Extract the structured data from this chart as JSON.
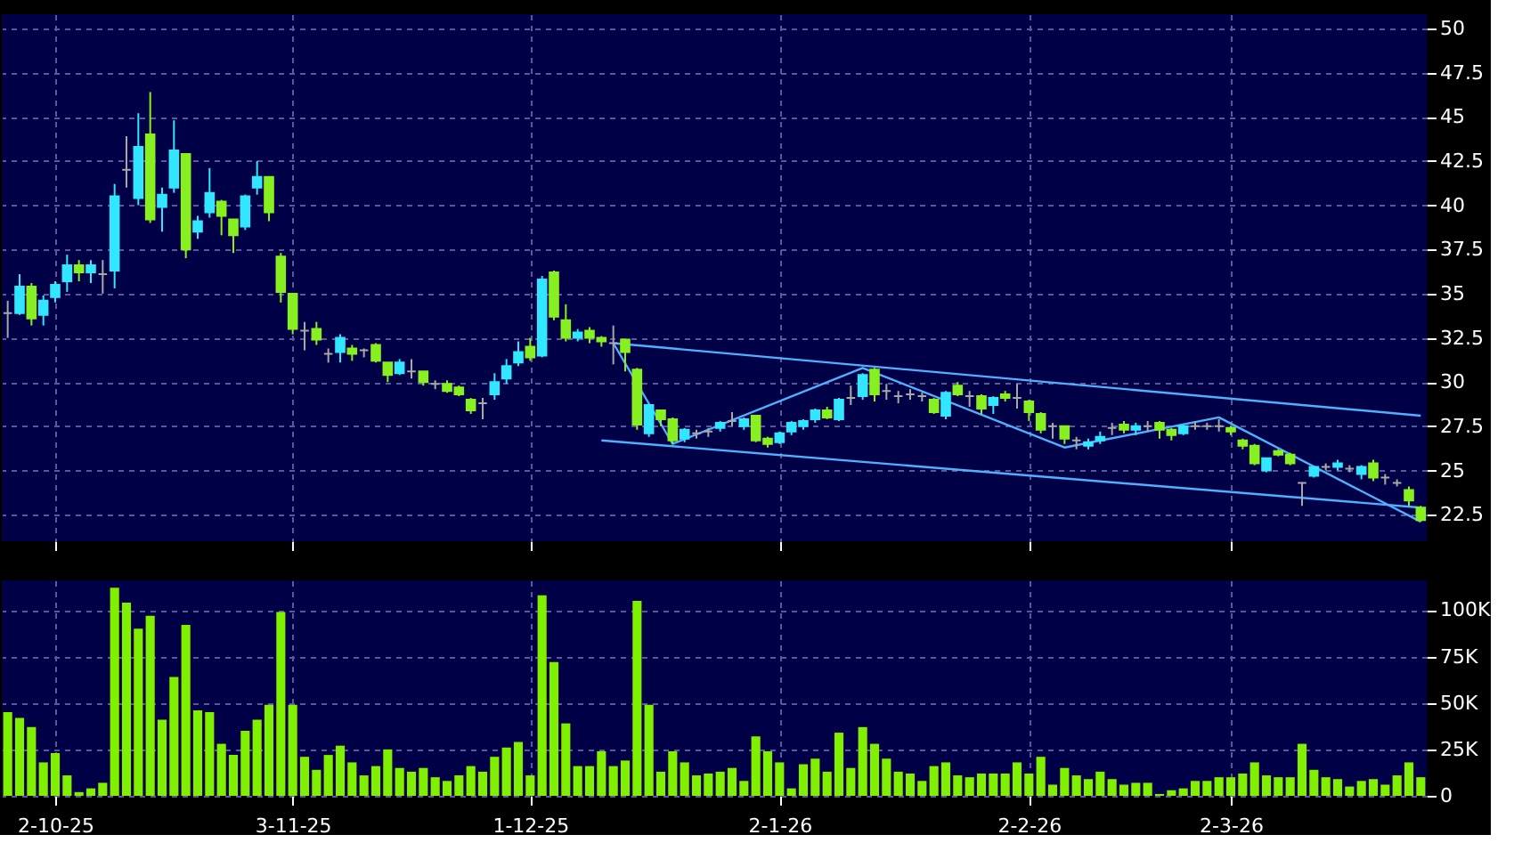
{
  "chart_data": [
    {
      "type": "candlestick",
      "categories": [
        null,
        null,
        null,
        null,
        null,
        null,
        null,
        null,
        null,
        null,
        null,
        null,
        null,
        null,
        null,
        null,
        null,
        null,
        null,
        null,
        null,
        null,
        null,
        null,
        null,
        null,
        null,
        null,
        null,
        null,
        null,
        null,
        null,
        null,
        null,
        null,
        null,
        null,
        null,
        null,
        null,
        null,
        null,
        null,
        null,
        null,
        null,
        null,
        null,
        null,
        null,
        null,
        null,
        null,
        null,
        null,
        null,
        null,
        null,
        null,
        null,
        null,
        null,
        null,
        null,
        null,
        null,
        null,
        null,
        null,
        null,
        null,
        null,
        null,
        null,
        null,
        null,
        null,
        null,
        null,
        null,
        null,
        null,
        null,
        null,
        null,
        null,
        null,
        null,
        null,
        null,
        null,
        null,
        null,
        null,
        null,
        null,
        null,
        null,
        null,
        null,
        null,
        null,
        null,
        null,
        null,
        null,
        null,
        null,
        null,
        null,
        null,
        null,
        null,
        null,
        null,
        null,
        null,
        null,
        null
      ],
      "ohlc": [
        [
          33.9,
          34.6,
          32.5,
          33.9
        ],
        [
          33.9,
          36.1,
          33.8,
          35.4
        ],
        [
          35.4,
          35.6,
          33.2,
          33.6
        ],
        [
          33.8,
          34.9,
          33.2,
          34.6
        ],
        [
          34.8,
          35.7,
          34.5,
          35.5
        ],
        [
          35.7,
          37.2,
          35.1,
          36.6
        ],
        [
          36.6,
          36.9,
          35.7,
          36.2
        ],
        [
          36.2,
          36.9,
          35.6,
          36.6
        ],
        [
          36.1,
          36.9,
          35.0,
          36.1
        ],
        [
          36.3,
          41.2,
          35.3,
          40.5
        ],
        [
          42.0,
          43.9,
          41.0,
          42.0
        ],
        [
          40.4,
          45.2,
          40.0,
          43.3
        ],
        [
          44.0,
          46.4,
          39.0,
          39.2
        ],
        [
          39.9,
          41.0,
          38.5,
          40.6
        ],
        [
          41.0,
          44.8,
          40.7,
          43.1
        ],
        [
          42.9,
          42.9,
          37.0,
          37.5
        ],
        [
          38.5,
          39.4,
          38.1,
          39.1
        ],
        [
          39.6,
          42.1,
          39.3,
          40.7
        ],
        [
          40.2,
          40.3,
          38.3,
          39.4
        ],
        [
          39.2,
          39.2,
          37.3,
          38.3
        ],
        [
          38.8,
          40.6,
          38.6,
          40.5
        ],
        [
          41.0,
          42.5,
          40.6,
          41.6
        ],
        [
          41.6,
          41.6,
          39.1,
          39.6
        ],
        [
          37.1,
          37.3,
          34.5,
          35.1
        ],
        [
          35.0,
          35.0,
          32.7,
          33.0
        ],
        [
          32.9,
          33.4,
          31.8,
          32.9
        ],
        [
          33.0,
          33.4,
          32.1,
          32.4
        ],
        [
          31.6,
          31.9,
          31.1,
          31.6
        ],
        [
          31.7,
          32.7,
          31.1,
          32.5
        ],
        [
          31.9,
          32.1,
          31.2,
          31.6
        ],
        [
          31.8,
          31.9,
          31.4,
          31.8
        ],
        [
          32.1,
          32.2,
          31.1,
          31.2
        ],
        [
          31.1,
          31.1,
          30.0,
          30.4
        ],
        [
          30.5,
          31.3,
          30.4,
          31.1
        ],
        [
          30.6,
          31.3,
          30.2,
          30.6
        ],
        [
          30.6,
          30.6,
          29.8,
          30.0
        ],
        [
          29.9,
          30.1,
          29.6,
          29.9
        ],
        [
          29.9,
          30.1,
          29.4,
          29.5
        ],
        [
          29.7,
          29.8,
          29.2,
          29.3
        ],
        [
          29.0,
          29.1,
          28.2,
          28.4
        ],
        [
          28.8,
          29.1,
          27.9,
          28.8
        ],
        [
          29.3,
          30.5,
          29.0,
          30.0
        ],
        [
          30.2,
          31.3,
          29.9,
          30.9
        ],
        [
          31.1,
          32.3,
          30.9,
          31.7
        ],
        [
          32.0,
          32.5,
          31.2,
          31.4
        ],
        [
          31.5,
          36.0,
          31.4,
          35.8
        ],
        [
          36.2,
          36.3,
          33.5,
          33.7
        ],
        [
          33.5,
          34.4,
          32.3,
          32.5
        ],
        [
          32.5,
          33.0,
          32.3,
          32.8
        ],
        [
          32.9,
          33.1,
          32.2,
          32.5
        ],
        [
          32.5,
          32.6,
          32.0,
          32.3
        ],
        [
          32.2,
          33.2,
          31.0,
          32.2
        ],
        [
          32.4,
          32.4,
          30.6,
          31.7
        ],
        [
          30.7,
          30.8,
          27.3,
          27.6
        ],
        [
          27.1,
          28.7,
          26.9,
          28.7
        ],
        [
          28.4,
          28.4,
          27.5,
          27.9
        ],
        [
          27.9,
          28.0,
          26.5,
          26.7
        ],
        [
          26.8,
          27.4,
          26.6,
          27.3
        ],
        [
          27.1,
          27.3,
          26.8,
          27.1
        ],
        [
          27.2,
          27.4,
          26.9,
          27.2
        ],
        [
          27.4,
          27.8,
          27.2,
          27.7
        ],
        [
          27.8,
          28.3,
          27.5,
          27.8
        ],
        [
          27.5,
          28.0,
          27.3,
          27.9
        ],
        [
          28.1,
          28.1,
          26.6,
          26.7
        ],
        [
          26.8,
          26.9,
          26.3,
          26.5
        ],
        [
          26.6,
          27.2,
          26.5,
          27.1
        ],
        [
          27.2,
          27.8,
          27.0,
          27.7
        ],
        [
          27.5,
          27.9,
          27.3,
          27.8
        ],
        [
          27.9,
          28.5,
          27.7,
          28.4
        ],
        [
          28.4,
          28.6,
          27.9,
          28.0
        ],
        [
          27.9,
          29.1,
          27.8,
          29.0
        ],
        [
          29.1,
          29.8,
          28.7,
          29.1
        ],
        [
          29.2,
          30.5,
          29.0,
          30.4
        ],
        [
          30.7,
          30.8,
          28.9,
          29.3
        ],
        [
          29.5,
          29.9,
          29.0,
          29.5
        ],
        [
          29.2,
          29.5,
          28.8,
          29.2
        ],
        [
          29.3,
          29.6,
          29.0,
          29.3
        ],
        [
          29.2,
          29.4,
          28.9,
          29.2
        ],
        [
          29.0,
          29.1,
          28.2,
          28.3
        ],
        [
          28.1,
          29.5,
          27.9,
          29.4
        ],
        [
          29.8,
          30.0,
          29.2,
          29.3
        ],
        [
          29.2,
          29.5,
          28.6,
          29.2
        ],
        [
          29.2,
          29.3,
          28.2,
          28.5
        ],
        [
          28.7,
          29.2,
          28.2,
          29.1
        ],
        [
          29.3,
          29.5,
          28.9,
          29.1
        ],
        [
          29.1,
          29.9,
          28.5,
          29.1
        ],
        [
          28.9,
          29.0,
          27.8,
          28.3
        ],
        [
          28.2,
          28.3,
          27.1,
          27.3
        ],
        [
          27.5,
          27.7,
          26.8,
          27.5
        ],
        [
          27.5,
          27.5,
          26.5,
          26.8
        ],
        [
          26.7,
          26.9,
          26.2,
          26.7
        ],
        [
          26.4,
          26.8,
          26.2,
          26.6
        ],
        [
          26.7,
          27.2,
          26.5,
          26.9
        ],
        [
          27.4,
          27.7,
          27.0,
          27.4
        ],
        [
          27.6,
          27.8,
          27.1,
          27.3
        ],
        [
          27.3,
          27.7,
          27.0,
          27.5
        ],
        [
          27.5,
          27.8,
          27.2,
          27.5
        ],
        [
          27.7,
          27.8,
          26.8,
          27.3
        ],
        [
          27.3,
          27.4,
          26.7,
          27.0
        ],
        [
          27.1,
          27.6,
          27.0,
          27.5
        ],
        [
          27.5,
          27.8,
          27.3,
          27.5
        ],
        [
          27.5,
          27.7,
          27.3,
          27.5
        ],
        [
          27.5,
          27.9,
          27.2,
          27.5
        ],
        [
          27.4,
          27.5,
          27.0,
          27.2
        ],
        [
          26.7,
          26.8,
          26.2,
          26.4
        ],
        [
          26.4,
          26.5,
          25.3,
          25.4
        ],
        [
          25.0,
          25.7,
          24.9,
          25.7
        ],
        [
          26.1,
          26.2,
          25.8,
          25.9
        ],
        [
          25.9,
          26.0,
          25.3,
          25.4
        ],
        [
          24.3,
          24.3,
          23.0,
          24.3
        ],
        [
          24.7,
          25.2,
          24.6,
          25.2
        ],
        [
          25.2,
          25.4,
          25.0,
          25.2
        ],
        [
          25.2,
          25.6,
          25.0,
          25.4
        ],
        [
          25.1,
          25.3,
          24.9,
          25.1
        ],
        [
          24.8,
          25.3,
          24.5,
          25.2
        ],
        [
          25.4,
          25.6,
          24.4,
          24.6
        ],
        [
          24.6,
          24.8,
          24.2,
          24.6
        ],
        [
          24.3,
          24.5,
          24.1,
          24.3
        ],
        [
          23.9,
          24.1,
          23.0,
          23.3
        ],
        [
          22.9,
          23.0,
          22.1,
          22.2
        ]
      ],
      "colors": [
        "#a8a8a8",
        "#33e6ff",
        "#88f020",
        "#33e6ff",
        "#33e6ff",
        "#33e6ff",
        "#88f020",
        "#33e6ff",
        "#a8a8a8",
        "#33e6ff",
        "#a8a8a8",
        "#33e6ff",
        "#88f020",
        "#33e6ff",
        "#33e6ff",
        "#88f020",
        "#33e6ff",
        "#33e6ff",
        "#88f020",
        "#88f020",
        "#33e6ff",
        "#33e6ff",
        "#88f020",
        "#88f020",
        "#88f020",
        "#a8a8a8",
        "#88f020",
        "#a8a8a8",
        "#33e6ff",
        "#88f020",
        "#a8a8a8",
        "#88f020",
        "#88f020",
        "#33e6ff",
        "#a8a8a8",
        "#88f020",
        "#a8a8a8",
        "#88f020",
        "#88f020",
        "#88f020",
        "#a8a8a8",
        "#33e6ff",
        "#33e6ff",
        "#33e6ff",
        "#88f020",
        "#33e6ff",
        "#88f020",
        "#88f020",
        "#33e6ff",
        "#88f020",
        "#88f020",
        "#a8a8a8",
        "#88f020",
        "#88f020",
        "#33e6ff",
        "#88f020",
        "#88f020",
        "#33e6ff",
        "#a8a8a8",
        "#a8a8a8",
        "#33e6ff",
        "#a8a8a8",
        "#33e6ff",
        "#88f020",
        "#88f020",
        "#33e6ff",
        "#33e6ff",
        "#33e6ff",
        "#33e6ff",
        "#88f020",
        "#33e6ff",
        "#a8a8a8",
        "#33e6ff",
        "#88f020",
        "#a8a8a8",
        "#a8a8a8",
        "#a8a8a8",
        "#a8a8a8",
        "#88f020",
        "#33e6ff",
        "#88f020",
        "#a8a8a8",
        "#88f020",
        "#33e6ff",
        "#88f020",
        "#a8a8a8",
        "#88f020",
        "#88f020",
        "#a8a8a8",
        "#88f020",
        "#a8a8a8",
        "#33e6ff",
        "#33e6ff",
        "#a8a8a8",
        "#88f020",
        "#33e6ff",
        "#a8a8a8",
        "#88f020",
        "#88f020",
        "#33e6ff",
        "#a8a8a8",
        "#a8a8a8",
        "#a8a8a8",
        "#88f020",
        "#88f020",
        "#88f020",
        "#33e6ff",
        "#88f020",
        "#88f020",
        "#a8a8a8",
        "#33e6ff",
        "#a8a8a8",
        "#33e6ff",
        "#a8a8a8",
        "#33e6ff",
        "#88f020",
        "#a8a8a8",
        "#a8a8a8",
        "#88f020",
        "#88f020"
      ],
      "series": [
        {
          "type": "line",
          "color": "#4fb0ff",
          "values": [
            null,
            null,
            null,
            null,
            null,
            null,
            null,
            null,
            null,
            null,
            null,
            null,
            null,
            null,
            null,
            null,
            null,
            null,
            null,
            null,
            null,
            null,
            null,
            null,
            null,
            null,
            null,
            null,
            null,
            null,
            null,
            null,
            null,
            null,
            null,
            null,
            null,
            null,
            null,
            null,
            null,
            null,
            null,
            null,
            null,
            null,
            null,
            null,
            null,
            null,
            null,
            32.2,
            null,
            null,
            null,
            null,
            null,
            null,
            null,
            null,
            null,
            null,
            null,
            null,
            null,
            null,
            null,
            null,
            null,
            null,
            null,
            null,
            null,
            null,
            null,
            null,
            null,
            null,
            null,
            null,
            null,
            null,
            null,
            null,
            null,
            null,
            null,
            null,
            null,
            null,
            null,
            null,
            null,
            null,
            null,
            null,
            null,
            null,
            null,
            null,
            null,
            null,
            null,
            null,
            null,
            null,
            null,
            null,
            null,
            null,
            null,
            null,
            null,
            null,
            null,
            null,
            null,
            null,
            null,
            28.1
          ]
        },
        {
          "type": "line",
          "color": "#4fb0ff",
          "values": [
            null,
            null,
            null,
            null,
            null,
            null,
            null,
            null,
            null,
            null,
            null,
            null,
            null,
            null,
            null,
            null,
            null,
            null,
            null,
            null,
            null,
            null,
            null,
            null,
            null,
            null,
            null,
            null,
            null,
            null,
            null,
            null,
            null,
            null,
            null,
            null,
            null,
            null,
            null,
            null,
            null,
            null,
            null,
            null,
            null,
            null,
            null,
            null,
            null,
            null,
            26.7,
            null,
            null,
            null,
            null,
            null,
            null,
            null,
            null,
            null,
            null,
            null,
            null,
            null,
            null,
            null,
            null,
            null,
            null,
            null,
            null,
            null,
            null,
            null,
            null,
            null,
            null,
            null,
            null,
            null,
            null,
            null,
            null,
            null,
            null,
            null,
            null,
            null,
            null,
            null,
            null,
            null,
            null,
            null,
            null,
            null,
            null,
            null,
            null,
            null,
            null,
            null,
            null,
            null,
            null,
            null,
            null,
            null,
            null,
            null,
            null,
            null,
            null,
            null,
            null,
            null,
            null,
            null,
            null,
            22.9
          ]
        },
        {
          "type": "line",
          "color": "#4fb0ff",
          "values": [
            null,
            null,
            null,
            null,
            null,
            null,
            null,
            null,
            null,
            null,
            null,
            null,
            null,
            null,
            null,
            null,
            null,
            null,
            null,
            null,
            null,
            null,
            null,
            null,
            null,
            null,
            null,
            null,
            null,
            null,
            null,
            null,
            null,
            null,
            null,
            null,
            null,
            null,
            null,
            null,
            null,
            null,
            null,
            null,
            null,
            null,
            null,
            null,
            null,
            null,
            null,
            32.2,
            null,
            null,
            null,
            null,
            26.5,
            null,
            null,
            null,
            null,
            null,
            null,
            null,
            null,
            null,
            null,
            null,
            null,
            null,
            null,
            null,
            30.8,
            null,
            null,
            null,
            null,
            null,
            null,
            null,
            null,
            null,
            null,
            null,
            null,
            null,
            null,
            null,
            null,
            26.3,
            null,
            null,
            null,
            null,
            null,
            null,
            null,
            null,
            null,
            null,
            null,
            null,
            28.0,
            null,
            null,
            null,
            null,
            null,
            null,
            null,
            null,
            null,
            null,
            null,
            null,
            null,
            null,
            null,
            null,
            22.1
          ]
        }
      ],
      "ylim": [
        21,
        50.8
      ],
      "yticks": [
        22.5,
        25,
        27.5,
        30,
        32.5,
        35,
        37.5,
        40,
        42.5,
        45,
        47.5,
        50
      ],
      "grid": true,
      "tick_labels": "y"
    },
    {
      "type": "bar",
      "categories": [
        null,
        null,
        null,
        null,
        "2-10-25",
        null,
        null,
        null,
        null,
        null,
        null,
        null,
        null,
        null,
        null,
        null,
        null,
        null,
        null,
        null,
        null,
        null,
        null,
        null,
        "3-11-25",
        null,
        null,
        null,
        null,
        null,
        null,
        null,
        null,
        null,
        null,
        null,
        null,
        null,
        null,
        null,
        null,
        null,
        null,
        null,
        "1-12-25",
        null,
        null,
        null,
        null,
        null,
        null,
        null,
        null,
        null,
        null,
        null,
        null,
        null,
        null,
        null,
        null,
        null,
        null,
        null,
        null,
        "2-1-26",
        null,
        null,
        null,
        null,
        null,
        null,
        null,
        null,
        null,
        null,
        null,
        null,
        null,
        null,
        null,
        null,
        null,
        null,
        null,
        null,
        "2-2-26",
        null,
        null,
        null,
        null,
        null,
        null,
        null,
        null,
        null,
        null,
        null,
        null,
        null,
        null,
        null,
        null,
        "2-3-26",
        null,
        null,
        null,
        null,
        null,
        null,
        null,
        null,
        null,
        null,
        null,
        null,
        null,
        null,
        null,
        null
      ],
      "values": [
        45,
        42,
        37,
        18,
        23,
        11,
        2,
        4,
        7,
        112,
        104,
        90,
        97,
        41,
        64,
        92,
        46,
        45,
        28,
        22,
        35,
        41,
        49,
        99,
        49,
        21,
        14,
        22,
        27,
        18,
        11,
        16,
        25,
        15,
        13,
        15,
        10,
        8,
        11,
        16,
        13,
        21,
        26,
        29,
        11,
        108,
        72,
        39,
        16,
        16,
        24,
        16,
        19,
        105,
        49,
        13,
        24,
        18,
        11,
        12,
        13,
        15,
        8,
        32,
        24,
        18,
        4,
        17,
        20,
        13,
        34,
        15,
        37,
        28,
        20,
        13,
        12,
        8,
        16,
        18,
        11,
        10,
        12,
        12,
        12,
        18,
        12,
        21,
        6,
        15,
        11,
        9,
        13,
        9,
        6,
        7,
        7,
        1,
        3,
        4,
        8,
        8,
        10,
        10,
        12,
        18,
        11,
        10,
        10,
        28,
        14,
        10,
        9,
        5,
        8,
        9,
        6,
        11,
        18,
        10
      ],
      "color": "#80f000",
      "ylim": [
        0,
        116
      ],
      "yticks": [
        0,
        {
          "value": 25,
          "label": "25K"
        },
        {
          "value": 50,
          "label": "50K"
        },
        {
          "value": 75,
          "label": "75K"
        },
        {
          "value": 100,
          "label": "100K"
        }
      ],
      "grid": true
    }
  ]
}
